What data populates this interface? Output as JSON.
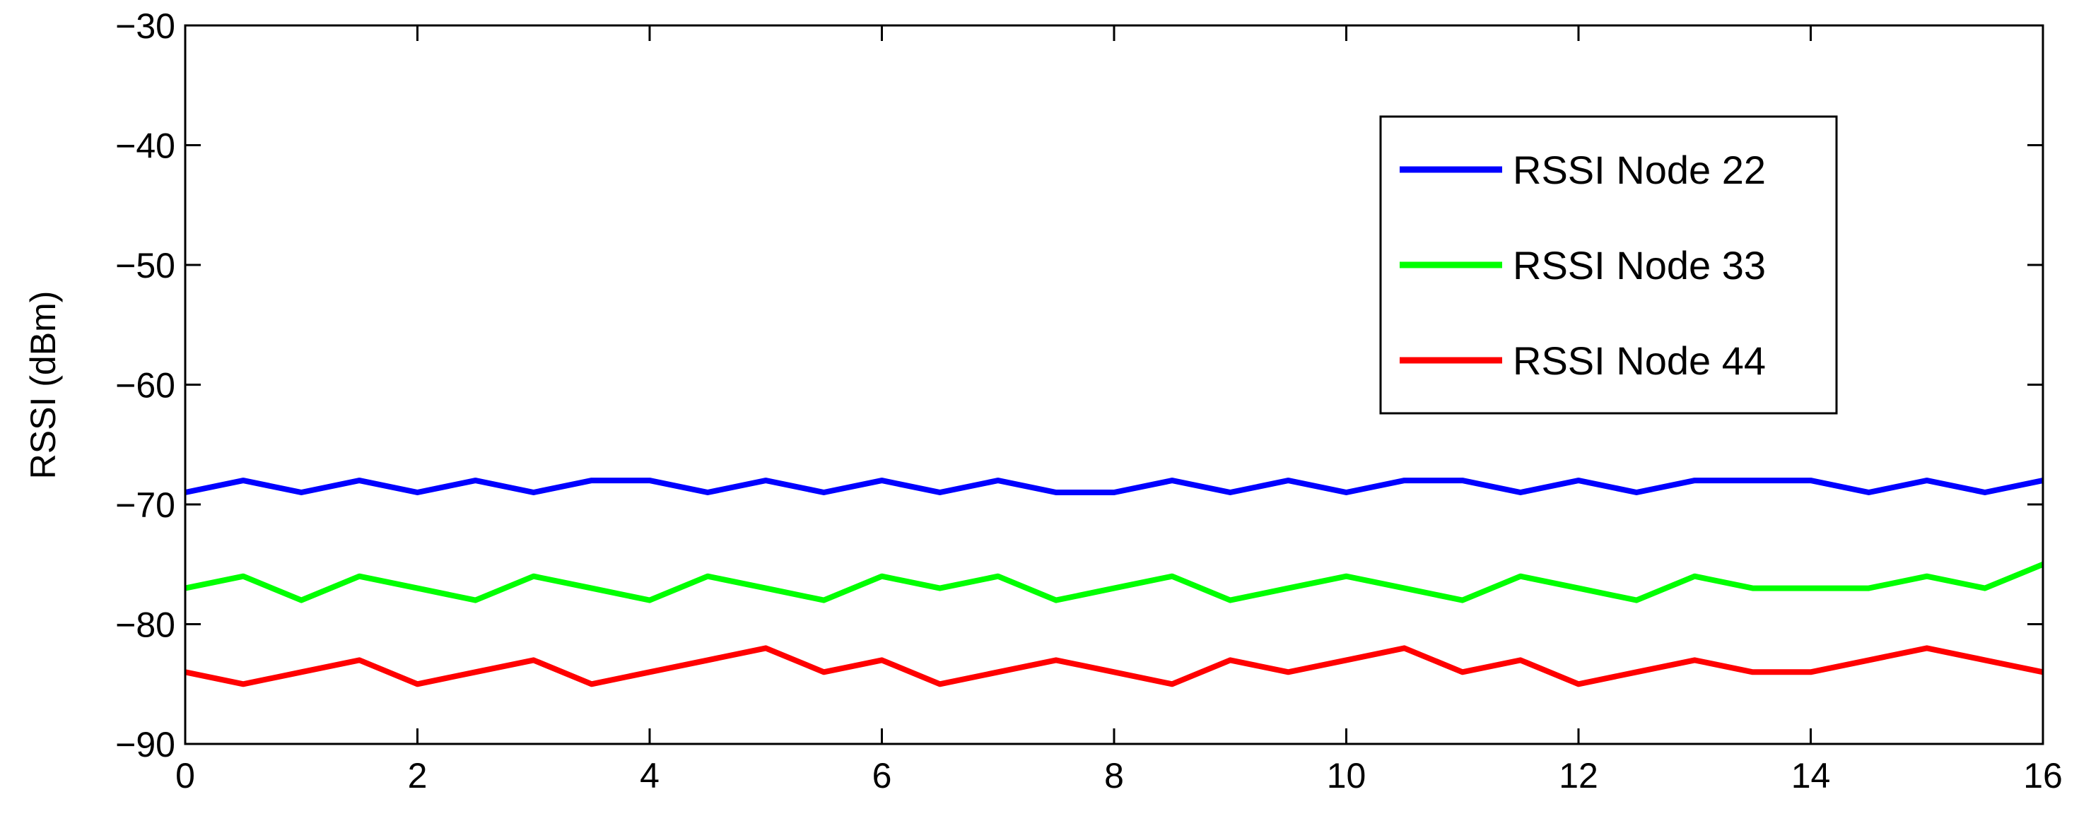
{
  "chart_data": {
    "type": "line",
    "title": "",
    "xlabel": "",
    "ylabel": "RSSI (dBm)",
    "xlim": [
      0,
      16
    ],
    "ylim": [
      -90,
      -30
    ],
    "xticks": [
      0,
      2,
      4,
      6,
      8,
      10,
      12,
      14,
      16
    ],
    "xtick_labels": [
      "0",
      "2",
      "4",
      "6",
      "8",
      "10",
      "12",
      "14",
      "16"
    ],
    "yticks": [
      -90,
      -80,
      -70,
      -60,
      -50,
      -40,
      -30
    ],
    "ytick_labels": [
      "−90",
      "−80",
      "−70",
      "−60",
      "−50",
      "−40",
      "−30"
    ],
    "grid": false,
    "legend_position": "top-right",
    "series": [
      {
        "name": "RSSI Node 22",
        "color": "#0000ff",
        "x": [
          0,
          0.5,
          1,
          1.5,
          2,
          2.5,
          3,
          3.5,
          4,
          4.5,
          5,
          5.5,
          6,
          6.5,
          7,
          7.5,
          8,
          8.5,
          9,
          9.5,
          10,
          10.5,
          11,
          11.5,
          12,
          12.5,
          13,
          13.5,
          14,
          14.5,
          15,
          15.5,
          16
        ],
        "values": [
          -69,
          -68,
          -69,
          -68,
          -69,
          -68,
          -69,
          -68,
          -68,
          -69,
          -68,
          -69,
          -68,
          -69,
          -68,
          -69,
          -69,
          -68,
          -69,
          -68,
          -69,
          -68,
          -68,
          -69,
          -68,
          -69,
          -68,
          -68,
          -68,
          -69,
          -68,
          -69,
          -68
        ]
      },
      {
        "name": "RSSI Node 33",
        "color": "#00ff00",
        "x": [
          0,
          0.5,
          1,
          1.5,
          2,
          2.5,
          3,
          3.5,
          4,
          4.5,
          5,
          5.5,
          6,
          6.5,
          7,
          7.5,
          8,
          8.5,
          9,
          9.5,
          10,
          10.5,
          11,
          11.5,
          12,
          12.5,
          13,
          13.5,
          14,
          14.5,
          15,
          15.5,
          16
        ],
        "values": [
          -77,
          -76,
          -78,
          -76,
          -77,
          -78,
          -76,
          -77,
          -78,
          -76,
          -77,
          -78,
          -76,
          -77,
          -76,
          -78,
          -77,
          -76,
          -78,
          -77,
          -76,
          -77,
          -78,
          -76,
          -77,
          -78,
          -76,
          -77,
          -77,
          -77,
          -76,
          -77,
          -75
        ]
      },
      {
        "name": "RSSI Node 44",
        "color": "#ff0000",
        "x": [
          0,
          0.5,
          1,
          1.5,
          2,
          2.5,
          3,
          3.5,
          4,
          4.5,
          5,
          5.5,
          6,
          6.5,
          7,
          7.5,
          8,
          8.5,
          9,
          9.5,
          10,
          10.5,
          11,
          11.5,
          12,
          12.5,
          13,
          13.5,
          14,
          14.5,
          15,
          15.5,
          16
        ],
        "values": [
          -84,
          -85,
          -84,
          -83,
          -85,
          -84,
          -83,
          -85,
          -84,
          -83,
          -82,
          -84,
          -83,
          -85,
          -84,
          -83,
          -84,
          -85,
          -83,
          -84,
          -83,
          -82,
          -84,
          -83,
          -85,
          -84,
          -83,
          -84,
          -84,
          -83,
          -82,
          -83,
          -84
        ]
      }
    ]
  }
}
